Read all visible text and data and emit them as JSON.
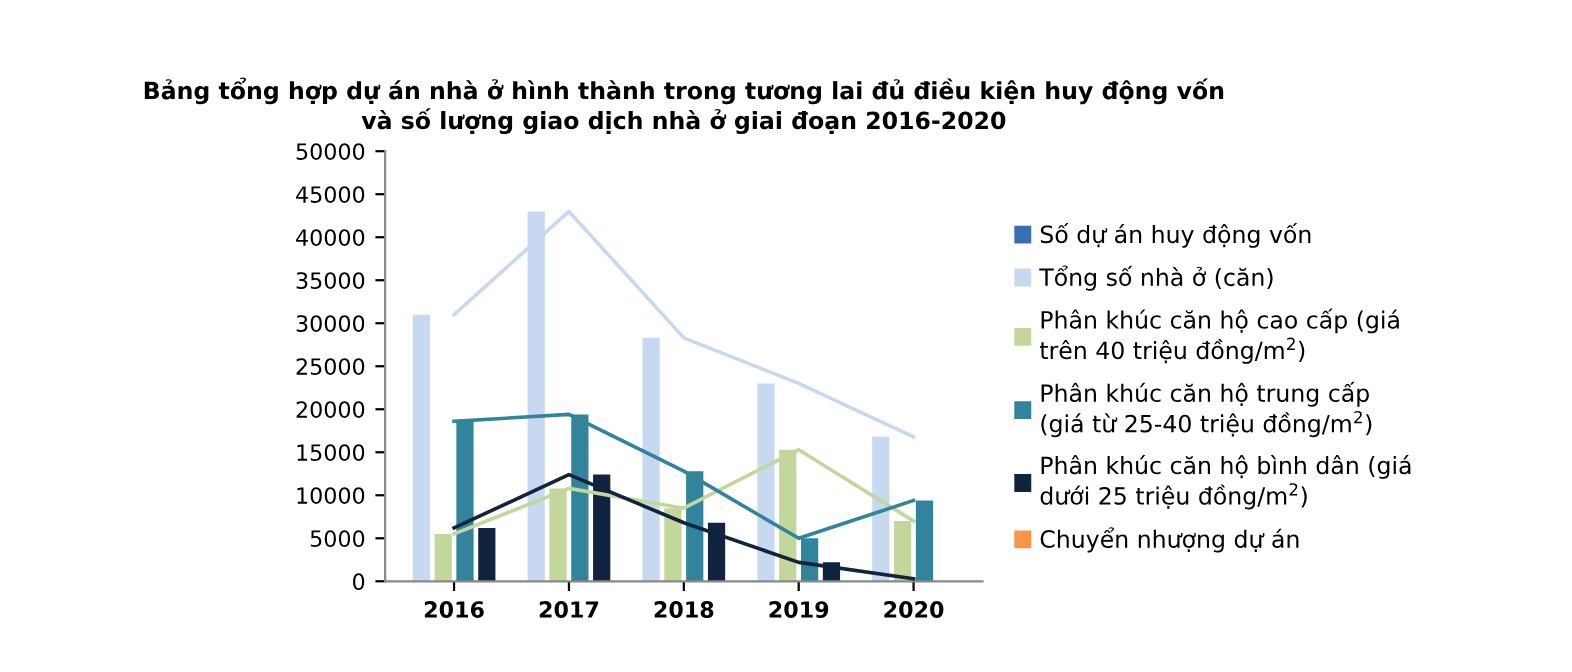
{
  "chart_data": {
    "type": "bar",
    "title": "Bảng tổng hợp dự án nhà ở hình thành trong tương lai đủ điều kiện huy động vốn\nvà số lượng giao dịch nhà ở giai đoạn 2016-2020",
    "categories": [
      "2016",
      "2017",
      "2018",
      "2019",
      "2020"
    ],
    "series": [
      {
        "name": "Số dự án huy động vốn",
        "color": "#3a6fb0",
        "values": [
          null,
          null,
          null,
          null,
          null
        ]
      },
      {
        "name": "Tổng số nhà ở (căn)",
        "color": "#c6d9f1",
        "values": [
          31000,
          43000,
          28300,
          23000,
          16800
        ]
      },
      {
        "name": "Phân khúc căn hộ cao cấp (giá\ntrên 40 triệu đồng/m$^{2}$)",
        "color": "#c3d69b",
        "values": [
          5500,
          10800,
          8500,
          15300,
          7000
        ]
      },
      {
        "name": "Phân khúc căn hộ trung cấp\n(giá từ 25-40 triệu đồng/m$^{2}$)",
        "color": "#31849b",
        "values": [
          18600,
          19400,
          12800,
          5000,
          9400
        ]
      },
      {
        "name": "Phân khúc căn hộ bình dân (giá\ndưới 25 triệu đồng/m$^{2}$)",
        "color": "#10243f",
        "values": [
          6200,
          12400,
          6800,
          2200,
          null
        ]
      },
      {
        "name": "Chuyển nhượng dự án",
        "color": "#f79646",
        "values": [
          null,
          null,
          null,
          null,
          null
        ]
      },
      {
        "type": "line",
        "color": "#c6d9f1",
        "values": [
          31000,
          43000,
          28300,
          23000,
          16800
        ]
      },
      {
        "type": "line",
        "color": "#c3d69b",
        "values": [
          5500,
          10800,
          8500,
          15300,
          7000
        ]
      },
      {
        "type": "line",
        "color": "#31849b",
        "values": [
          18600,
          19400,
          12800,
          5000,
          9400
        ]
      },
      {
        "type": "line",
        "color": "#10243f",
        "values": [
          6200,
          12400,
          6800,
          2200,
          300
        ]
      }
    ],
    "ylim": [
      0,
      50000
    ],
    "yticks": [
      0,
      5000,
      10000,
      15000,
      20000,
      25000,
      30000,
      35000,
      40000,
      45000,
      50000
    ],
    "legend": "right",
    "grid": false,
    "marker": "none",
    "line_style": "solid"
  }
}
